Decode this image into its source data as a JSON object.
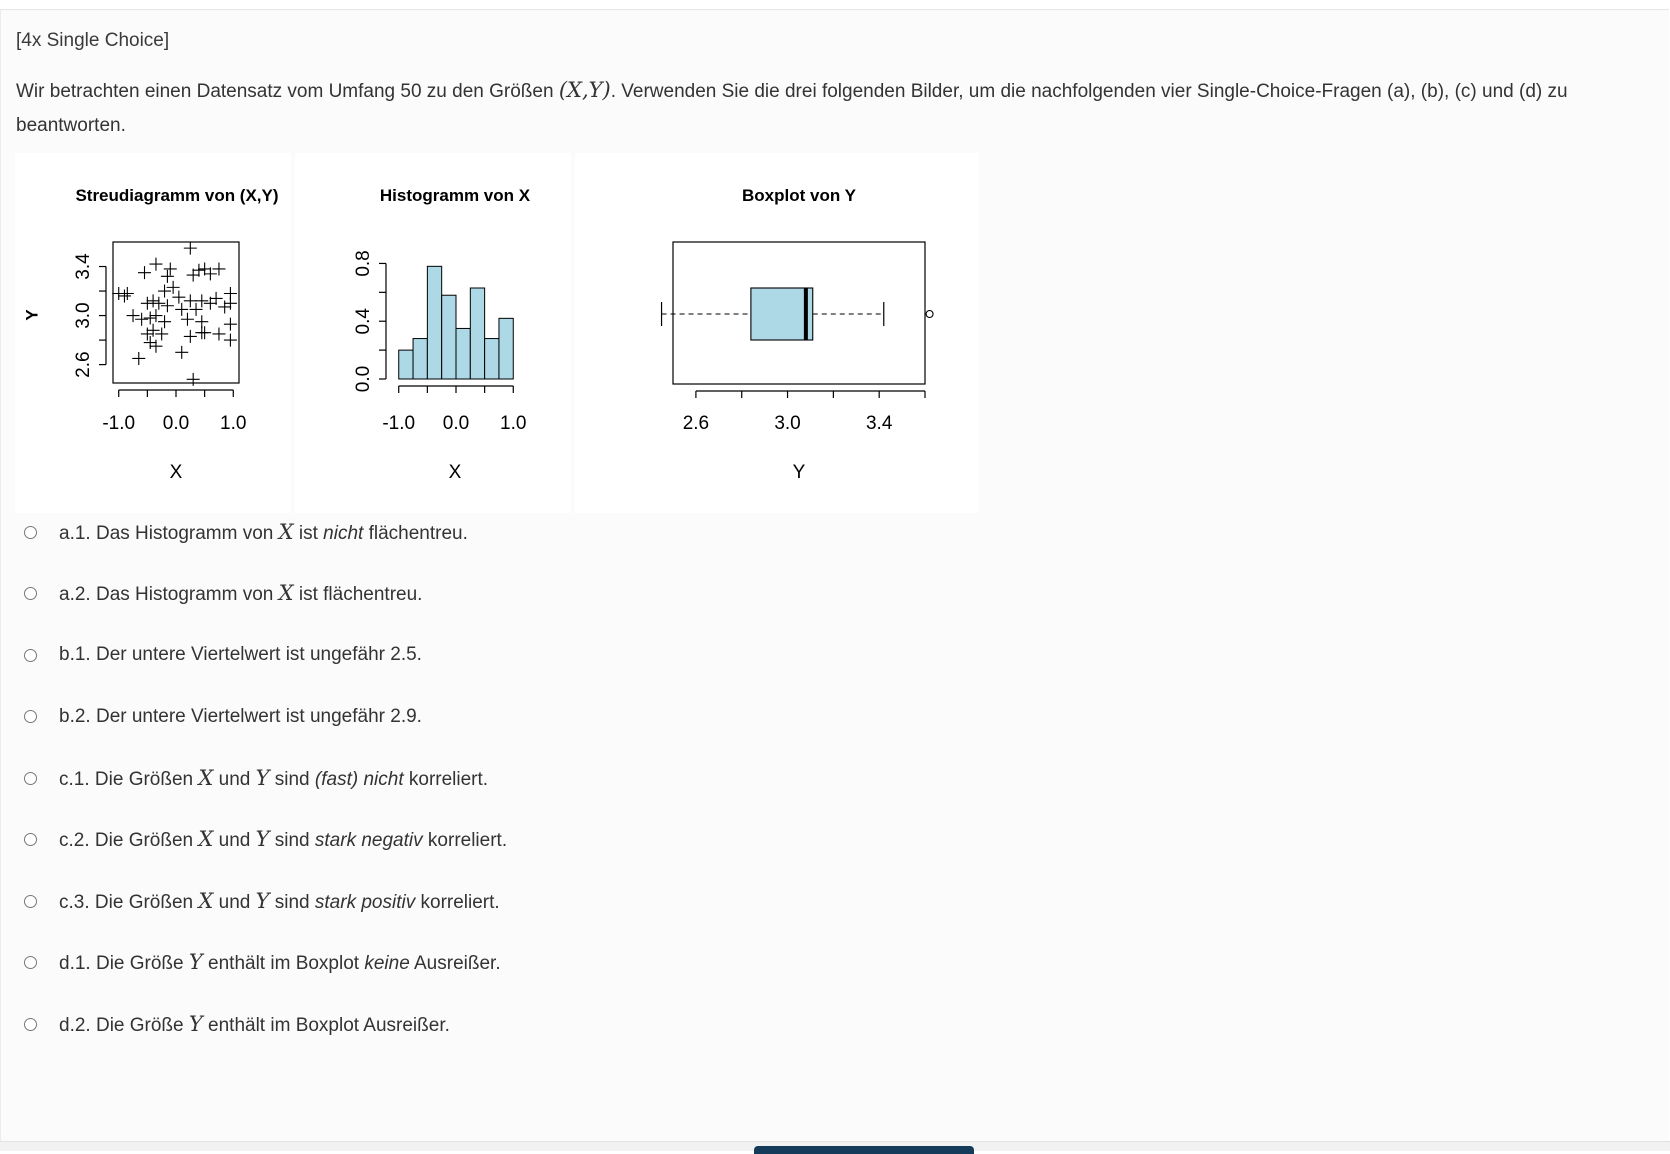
{
  "question": {
    "type_label": "[4x Single Choice]",
    "intro_before": "Wir betrachten einen Datensatz vom Umfang 50 zu den Größen ",
    "intro_math": "(X,Y)",
    "intro_after": ". Verwenden Sie die drei folgenden Bilder, um die nachfolgenden vier Single-Choice-Fragen (a), (b), (c) und (d) zu beantworten."
  },
  "chart_data": [
    {
      "type": "scatter",
      "title": "Streudiagramm von (X,Y)",
      "xlabel": "X",
      "ylabel": "Y",
      "xlim": [
        -1.1,
        1.1
      ],
      "ylim": [
        2.45,
        3.6
      ],
      "xticks": [
        "-1.0",
        "0.0",
        "1.0"
      ],
      "xtick_values": [
        -1.0,
        0.0,
        1.0
      ],
      "yticks": [
        "2.6",
        "3.0",
        "3.4"
      ],
      "ytick_values": [
        2.6,
        3.0,
        3.4
      ],
      "marker": "+",
      "points": [
        [
          0.25,
          3.55
        ],
        [
          -0.35,
          3.42
        ],
        [
          -0.55,
          3.35
        ],
        [
          -0.1,
          3.38
        ],
        [
          -0.15,
          3.32
        ],
        [
          0.4,
          3.37
        ],
        [
          0.5,
          3.38
        ],
        [
          0.75,
          3.38
        ],
        [
          0.6,
          3.34
        ],
        [
          0.3,
          3.33
        ],
        [
          -1.0,
          3.18
        ],
        [
          -0.85,
          3.18
        ],
        [
          -0.9,
          3.16
        ],
        [
          -0.2,
          3.2
        ],
        [
          -0.05,
          3.23
        ],
        [
          0.05,
          3.15
        ],
        [
          0.25,
          3.12
        ],
        [
          0.45,
          3.12
        ],
        [
          0.7,
          3.14
        ],
        [
          0.95,
          3.18
        ],
        [
          -0.5,
          3.1
        ],
        [
          -0.4,
          3.12
        ],
        [
          -0.3,
          3.1
        ],
        [
          -0.15,
          3.08
        ],
        [
          0.1,
          3.05
        ],
        [
          0.35,
          3.05
        ],
        [
          0.6,
          3.1
        ],
        [
          0.85,
          3.07
        ],
        [
          0.95,
          3.1
        ],
        [
          -0.75,
          3.0
        ],
        [
          -0.6,
          2.97
        ],
        [
          -0.45,
          2.98
        ],
        [
          -0.35,
          3.0
        ],
        [
          -0.2,
          2.95
        ],
        [
          0.2,
          2.97
        ],
        [
          0.45,
          2.95
        ],
        [
          0.95,
          2.93
        ],
        [
          -0.5,
          2.85
        ],
        [
          -0.4,
          2.88
        ],
        [
          -0.25,
          2.85
        ],
        [
          0.25,
          2.83
        ],
        [
          0.5,
          2.86
        ],
        [
          0.75,
          2.85
        ],
        [
          -0.45,
          2.78
        ],
        [
          -0.35,
          2.75
        ],
        [
          0.1,
          2.7
        ],
        [
          0.45,
          2.86
        ],
        [
          0.95,
          2.8
        ],
        [
          -0.65,
          2.65
        ],
        [
          0.3,
          2.48
        ]
      ]
    },
    {
      "type": "bar",
      "title": "Histogramm von X",
      "xlabel": "X",
      "xlim": [
        -1.1,
        1.1
      ],
      "ylim": [
        0,
        0.9
      ],
      "xticks": [
        "-1.0",
        "0.0",
        "1.0"
      ],
      "xtick_values": [
        -1.0,
        0.0,
        1.0
      ],
      "yticks": [
        "0.0",
        "0.4",
        "0.8"
      ],
      "ytick_values": [
        0.0,
        0.4,
        0.8
      ],
      "bin_edges": [
        -1.0,
        -0.75,
        -0.5,
        -0.25,
        0.0,
        0.25,
        0.5,
        0.75,
        1.0
      ],
      "values": [
        0.2,
        0.28,
        0.78,
        0.58,
        0.35,
        0.63,
        0.28,
        0.42
      ],
      "bar_color": "#add8e6"
    },
    {
      "type": "boxplot",
      "title": "Boxplot von Y",
      "xlabel": "Y",
      "xlim": [
        2.5,
        3.6
      ],
      "xticks": [
        "2.6",
        "",
        "3.0",
        "",
        "3.4",
        ""
      ],
      "xtick_values": [
        2.6,
        2.8,
        3.0,
        3.2,
        3.4,
        3.6
      ],
      "whisker_low": 2.45,
      "q1": 2.84,
      "median": 3.08,
      "q3": 3.11,
      "whisker_high": 3.42,
      "outliers": [
        3.62
      ],
      "box_color": "#add8e6"
    }
  ],
  "options": [
    {
      "id": "a1",
      "prefix": "a.1. Das Histogramm von ",
      "m1": "X",
      "mid": " ist ",
      "em": "nicht",
      "m2": "",
      "suffix": " flächentreu."
    },
    {
      "id": "a2",
      "prefix": "a.2. Das Histogramm von ",
      "m1": "X",
      "mid": " ist flächentreu.",
      "em": "",
      "m2": "",
      "suffix": ""
    },
    {
      "id": "b1",
      "prefix": "b.1. Der untere Viertelwert ist ungefähr 2.5.",
      "m1": "",
      "mid": "",
      "em": "",
      "m2": "",
      "suffix": ""
    },
    {
      "id": "b2",
      "prefix": "b.2. Der untere Viertelwert ist ungefähr 2.9.",
      "m1": "",
      "mid": "",
      "em": "",
      "m2": "",
      "suffix": ""
    },
    {
      "id": "c1",
      "prefix": "c.1. Die Größen ",
      "m1": "X",
      "mid": " und ",
      "m2": "Y",
      "mid2": " sind ",
      "em": "(fast) nicht",
      "suffix": " korreliert."
    },
    {
      "id": "c2",
      "prefix": "c.2. Die Größen ",
      "m1": "X",
      "mid": " und ",
      "m2": "Y",
      "mid2": " sind ",
      "em": "stark negativ",
      "suffix": " korreliert."
    },
    {
      "id": "c3",
      "prefix": "c.3. Die Größen ",
      "m1": "X",
      "mid": " und ",
      "m2": "Y",
      "mid2": " sind ",
      "em": "stark positiv",
      "suffix": " korreliert."
    },
    {
      "id": "d1",
      "prefix": "d.1. Die Größe ",
      "m1": "Y",
      "mid": " enthält im Boxplot ",
      "em": "keine",
      "m2": "",
      "suffix": " Ausreißer."
    },
    {
      "id": "d2",
      "prefix": "d.2. Die Größe ",
      "m1": "Y",
      "mid": " enthält im Boxplot Ausreißer.",
      "em": "",
      "m2": "",
      "suffix": ""
    }
  ]
}
